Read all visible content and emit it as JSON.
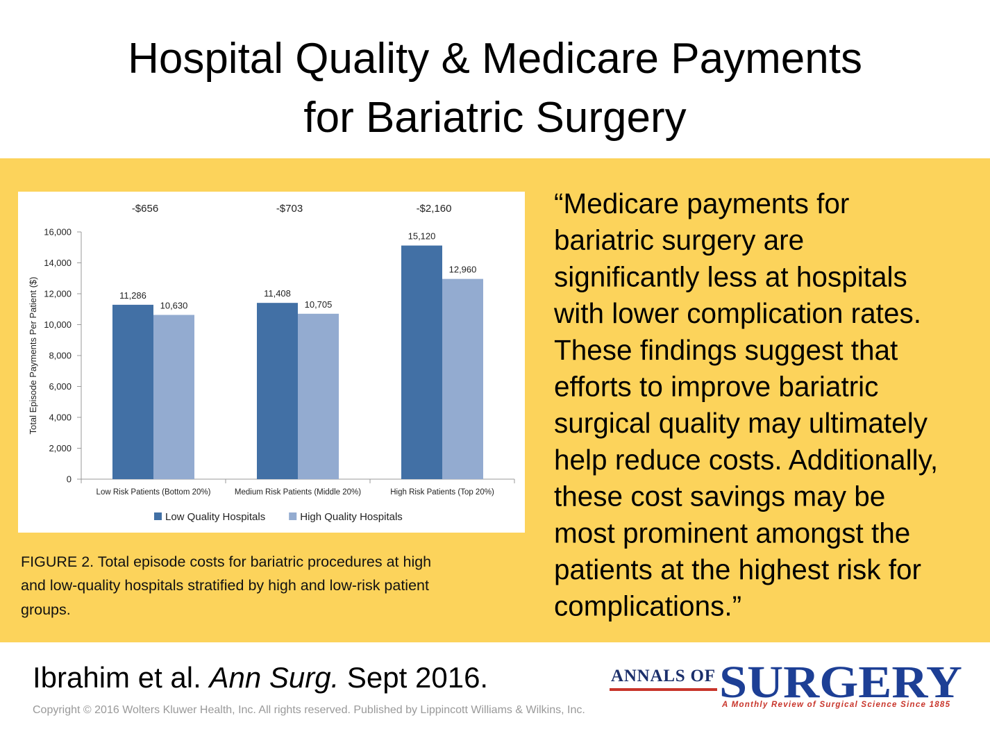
{
  "title": [
    "Hospital Quality & Medicare Payments",
    "for Bariatric Surgery"
  ],
  "chart_data": {
    "type": "bar",
    "ylabel": "Total Episode Payments Per Patient ($)",
    "categories": [
      "Low Risk Patients (Bottom 20%)",
      "Medium Risk Patients (Middle 20%)",
      "High Risk Patients   (Top 20%)"
    ],
    "annotations": [
      "-$656",
      "-$703",
      "-$2,160"
    ],
    "series": [
      {
        "name": "Low Quality Hospitals",
        "color": "#4270a5",
        "values": [
          11286,
          11408,
          15120
        ],
        "value_labels": [
          "11,286",
          "11,408",
          "15,120"
        ]
      },
      {
        "name": "High Quality Hospitals",
        "color": "#93abd0",
        "values": [
          10630,
          10705,
          12960
        ],
        "value_labels": [
          "10,630",
          "10,705",
          "12,960"
        ]
      }
    ],
    "ylim": [
      0,
      16000
    ],
    "yticks": [
      0,
      {
        "value": 2000,
        "label": "2,000"
      },
      {
        "value": 4000,
        "label": "4,000"
      },
      {
        "value": 6000,
        "label": "6,000"
      },
      {
        "value": 8000,
        "label": "8,000"
      },
      {
        "value": 10000,
        "label": "10,000"
      },
      {
        "value": 12000,
        "label": "12,000"
      },
      {
        "value": 14000,
        "label": "14,000"
      },
      {
        "value": 16000,
        "label": "16,000"
      }
    ],
    "legend": "bottom"
  },
  "caption": [
    "FIGURE 2. Total episode costs for bariatric procedures at high",
    "and low-quality hospitals stratified by high and low-risk patient",
    "groups."
  ],
  "quote": [
    "“Medicare payments for",
    "bariatric surgery are",
    "significantly less at hospitals",
    "with lower complication rates.",
    "These findings suggest that",
    "efforts to improve bariatric",
    "surgical quality may ultimately",
    "help reduce costs. Additionally,",
    "these cost savings may be",
    "most prominent amongst the",
    "patients at the highest risk for",
    "complications.”"
  ],
  "citation": {
    "authors": "Ibrahim et al. ",
    "journal": "Ann Surg.",
    "date": " Sept 2016."
  },
  "copyright": "Copyright © 2016 Wolters Kluwer Health, Inc. All rights reserved.   Published by Lippincott Williams & Wilkins, Inc.",
  "logo": {
    "prefix": "ANNALS OF",
    "name": "SURGERY",
    "tagline": "A Monthly Review of Surgical Science Since 1885"
  }
}
